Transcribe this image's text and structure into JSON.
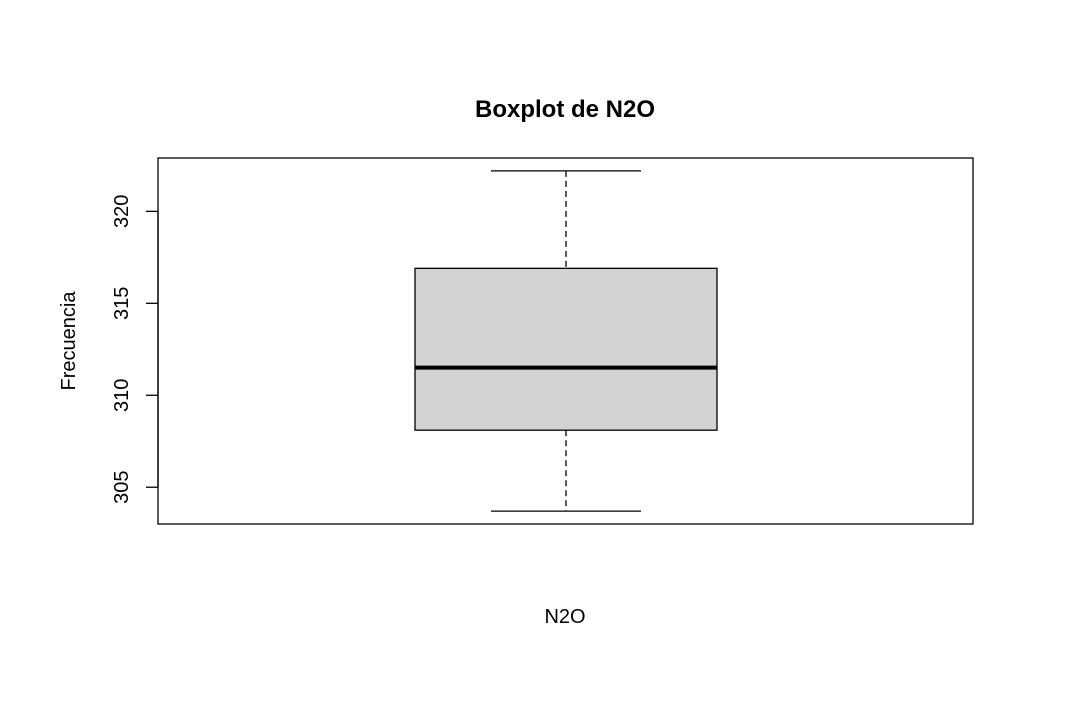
{
  "chart_data": {
    "type": "boxplot",
    "title": "Boxplot de N2O",
    "xlabel": "N2O",
    "ylabel": "Frecuencia",
    "ylim": [
      303.0,
      322.9
    ],
    "yticks": [
      {
        "value": 305,
        "label": "305"
      },
      {
        "value": 310,
        "label": "310"
      },
      {
        "value": 315,
        "label": "315"
      },
      {
        "value": 320,
        "label": "320"
      }
    ],
    "box": {
      "min": 303.7,
      "q1": 308.1,
      "median": 311.5,
      "q3": 316.9,
      "max": 322.2
    },
    "box_fill": "#d3d3d3",
    "line_color": "#000000"
  }
}
